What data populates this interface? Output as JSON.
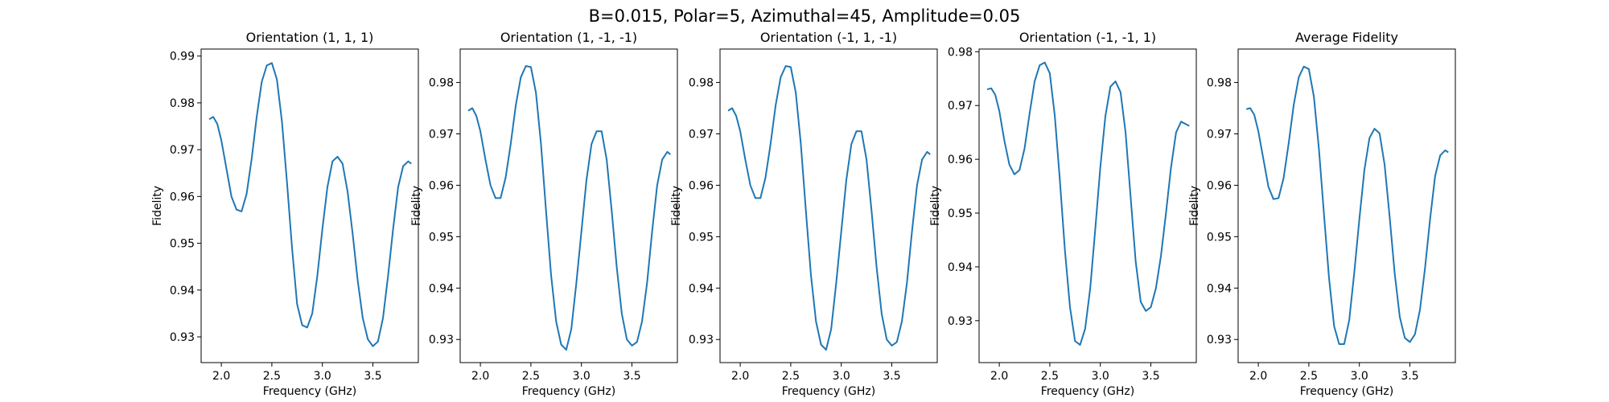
{
  "figure": {
    "suptitle": "B=0.015, Polar=5, Azimuthal=45, Amplitude=0.05",
    "line_color": "#1f77b4"
  },
  "chart_data": [
    {
      "type": "line",
      "title": "Orientation (1, 1, 1)",
      "xlabel": "Frequency (GHz)",
      "ylabel": "Fidelity",
      "xlim": [
        1.8,
        3.95
      ],
      "ylim": [
        0.9245,
        0.9915
      ],
      "xticks": [
        2.0,
        2.5,
        3.0,
        3.5
      ],
      "xtick_labels": [
        "2.0",
        "2.5",
        "3.0",
        "3.5"
      ],
      "yticks": [
        0.93,
        0.94,
        0.95,
        0.96,
        0.97,
        0.98,
        0.99
      ],
      "ytick_labels": [
        "0.93",
        "0.94",
        "0.95",
        "0.96",
        "0.97",
        "0.98",
        "0.99"
      ],
      "series": [
        {
          "x": [
            1.88,
            1.92,
            1.96,
            2.0,
            2.05,
            2.1,
            2.15,
            2.2,
            2.25,
            2.3,
            2.35,
            2.4,
            2.45,
            2.5,
            2.55,
            2.6,
            2.65,
            2.7,
            2.75,
            2.8,
            2.85,
            2.9,
            2.95,
            3.0,
            3.05,
            3.1,
            3.15,
            3.2,
            3.25,
            3.3,
            3.35,
            3.4,
            3.45,
            3.5,
            3.55,
            3.6,
            3.65,
            3.7,
            3.75,
            3.8,
            3.85,
            3.88
          ],
          "values": [
            0.9765,
            0.977,
            0.9755,
            0.972,
            0.966,
            0.96,
            0.9572,
            0.9568,
            0.9605,
            0.968,
            0.977,
            0.9845,
            0.988,
            0.9885,
            0.985,
            0.976,
            0.963,
            0.949,
            0.937,
            0.9325,
            0.932,
            0.935,
            0.943,
            0.953,
            0.962,
            0.9675,
            0.9685,
            0.967,
            0.961,
            0.952,
            0.942,
            0.934,
            0.9295,
            0.928,
            0.929,
            0.934,
            0.943,
            0.953,
            0.962,
            0.9665,
            0.9675,
            0.967
          ]
        }
      ]
    },
    {
      "type": "line",
      "title": "Orientation (1, -1, -1)",
      "xlabel": "Frequency (GHz)",
      "ylabel": "Fidelity",
      "xlim": [
        1.8,
        3.95
      ],
      "ylim": [
        0.9255,
        0.9865
      ],
      "xticks": [
        2.0,
        2.5,
        3.0,
        3.5
      ],
      "xtick_labels": [
        "2.0",
        "2.5",
        "3.0",
        "3.5"
      ],
      "yticks": [
        0.93,
        0.94,
        0.95,
        0.96,
        0.97,
        0.98
      ],
      "ytick_labels": [
        "0.93",
        "0.94",
        "0.95",
        "0.96",
        "0.97",
        "0.98"
      ],
      "series": [
        {
          "x": [
            1.88,
            1.92,
            1.96,
            2.0,
            2.05,
            2.1,
            2.15,
            2.2,
            2.25,
            2.3,
            2.35,
            2.4,
            2.45,
            2.5,
            2.55,
            2.6,
            2.65,
            2.7,
            2.75,
            2.8,
            2.85,
            2.9,
            2.95,
            3.0,
            3.05,
            3.1,
            3.15,
            3.2,
            3.25,
            3.3,
            3.35,
            3.4,
            3.45,
            3.5,
            3.55,
            3.6,
            3.65,
            3.7,
            3.75,
            3.8,
            3.85,
            3.88
          ],
          "values": [
            0.9745,
            0.975,
            0.9735,
            0.9705,
            0.965,
            0.96,
            0.9575,
            0.9575,
            0.9615,
            0.968,
            0.9755,
            0.981,
            0.9832,
            0.983,
            0.978,
            0.968,
            0.955,
            0.9425,
            0.9335,
            0.929,
            0.928,
            0.932,
            0.941,
            0.951,
            0.961,
            0.968,
            0.9705,
            0.9705,
            0.965,
            0.955,
            0.944,
            0.935,
            0.93,
            0.9288,
            0.9295,
            0.9335,
            0.941,
            0.951,
            0.96,
            0.965,
            0.9665,
            0.966
          ]
        }
      ]
    },
    {
      "type": "line",
      "title": "Orientation (-1, 1, -1)",
      "xlabel": "Frequency (GHz)",
      "ylabel": "Fidelity",
      "xlim": [
        1.8,
        3.95
      ],
      "ylim": [
        0.9255,
        0.9865
      ],
      "xticks": [
        2.0,
        2.5,
        3.0,
        3.5
      ],
      "xtick_labels": [
        "2.0",
        "2.5",
        "3.0",
        "3.5"
      ],
      "yticks": [
        0.93,
        0.94,
        0.95,
        0.96,
        0.97,
        0.98
      ],
      "ytick_labels": [
        "0.93",
        "0.94",
        "0.95",
        "0.96",
        "0.97",
        "0.98"
      ],
      "series": [
        {
          "x": [
            1.88,
            1.92,
            1.96,
            2.0,
            2.05,
            2.1,
            2.15,
            2.2,
            2.25,
            2.3,
            2.35,
            2.4,
            2.45,
            2.5,
            2.55,
            2.6,
            2.65,
            2.7,
            2.75,
            2.8,
            2.85,
            2.9,
            2.95,
            3.0,
            3.05,
            3.1,
            3.15,
            3.2,
            3.25,
            3.3,
            3.35,
            3.4,
            3.45,
            3.5,
            3.55,
            3.6,
            3.65,
            3.7,
            3.75,
            3.8,
            3.85,
            3.88
          ],
          "values": [
            0.9745,
            0.975,
            0.9735,
            0.9705,
            0.965,
            0.96,
            0.9575,
            0.9575,
            0.9615,
            0.968,
            0.9755,
            0.981,
            0.9832,
            0.983,
            0.978,
            0.968,
            0.955,
            0.9425,
            0.9335,
            0.929,
            0.928,
            0.932,
            0.941,
            0.951,
            0.961,
            0.968,
            0.9705,
            0.9705,
            0.965,
            0.955,
            0.944,
            0.935,
            0.93,
            0.9288,
            0.9295,
            0.9335,
            0.941,
            0.951,
            0.96,
            0.965,
            0.9665,
            0.966
          ]
        }
      ]
    },
    {
      "type": "line",
      "title": "Orientation (-1, -1, 1)",
      "xlabel": "Frequency (GHz)",
      "ylabel": "Fidelity",
      "xlim": [
        1.8,
        3.95
      ],
      "ylim": [
        0.9222,
        0.9805
      ],
      "xticks": [
        2.0,
        2.5,
        3.0,
        3.5
      ],
      "xtick_labels": [
        "2.0",
        "2.5",
        "3.0",
        "3.5"
      ],
      "yticks": [
        0.93,
        0.94,
        0.95,
        0.96,
        0.97,
        0.98
      ],
      "ytick_labels": [
        "0.93",
        "0.94",
        "0.95",
        "0.96",
        "0.97",
        "0.98"
      ],
      "series": [
        {
          "x": [
            1.88,
            1.92,
            1.96,
            2.0,
            2.05,
            2.1,
            2.15,
            2.2,
            2.25,
            2.3,
            2.35,
            2.4,
            2.45,
            2.5,
            2.55,
            2.6,
            2.65,
            2.7,
            2.75,
            2.8,
            2.85,
            2.9,
            2.95,
            3.0,
            3.05,
            3.1,
            3.15,
            3.2,
            3.25,
            3.3,
            3.35,
            3.4,
            3.45,
            3.5,
            3.55,
            3.6,
            3.65,
            3.7,
            3.75,
            3.8,
            3.85,
            3.88
          ],
          "values": [
            0.973,
            0.9732,
            0.972,
            0.969,
            0.9635,
            0.959,
            0.9572,
            0.958,
            0.962,
            0.9685,
            0.9745,
            0.9775,
            0.978,
            0.976,
            0.968,
            0.956,
            0.943,
            0.9325,
            0.9262,
            0.9255,
            0.9285,
            0.936,
            0.947,
            0.9585,
            0.968,
            0.9735,
            0.9745,
            0.9725,
            0.965,
            0.953,
            0.941,
            0.9335,
            0.9318,
            0.9325,
            0.936,
            0.942,
            0.95,
            0.9585,
            0.965,
            0.967,
            0.9665,
            0.9662
          ]
        }
      ]
    },
    {
      "type": "line",
      "title": "Average Fidelity",
      "xlabel": "Frequency (GHz)",
      "ylabel": "Fidelity",
      "xlim": [
        1.8,
        3.95
      ],
      "ylim": [
        0.9255,
        0.9865
      ],
      "xticks": [
        2.0,
        2.5,
        3.0,
        3.5
      ],
      "xtick_labels": [
        "2.0",
        "2.5",
        "3.0",
        "3.5"
      ],
      "yticks": [
        0.93,
        0.94,
        0.95,
        0.96,
        0.97,
        0.98
      ],
      "ytick_labels": [
        "0.93",
        "0.94",
        "0.95",
        "0.96",
        "0.97",
        "0.98"
      ],
      "series": [
        {
          "x": [
            1.88,
            1.92,
            1.96,
            2.0,
            2.05,
            2.1,
            2.15,
            2.2,
            2.25,
            2.3,
            2.35,
            2.4,
            2.45,
            2.5,
            2.55,
            2.6,
            2.65,
            2.7,
            2.75,
            2.8,
            2.85,
            2.9,
            2.95,
            3.0,
            3.05,
            3.1,
            3.15,
            3.2,
            3.25,
            3.3,
            3.35,
            3.4,
            3.45,
            3.5,
            3.55,
            3.6,
            3.65,
            3.7,
            3.75,
            3.8,
            3.85,
            3.88
          ],
          "values": [
            0.9748,
            0.975,
            0.9737,
            0.9705,
            0.9651,
            0.9597,
            0.9573,
            0.9575,
            0.9614,
            0.9681,
            0.9756,
            0.981,
            0.9831,
            0.9826,
            0.9772,
            0.967,
            0.9543,
            0.9419,
            0.9326,
            0.9291,
            0.9291,
            0.9338,
            0.9431,
            0.9534,
            0.963,
            0.9692,
            0.971,
            0.9701,
            0.964,
            0.9538,
            0.9428,
            0.9344,
            0.9303,
            0.9295,
            0.931,
            0.9358,
            0.9439,
            0.9534,
            0.9618,
            0.9658,
            0.9668,
            0.9664
          ]
        }
      ]
    }
  ]
}
